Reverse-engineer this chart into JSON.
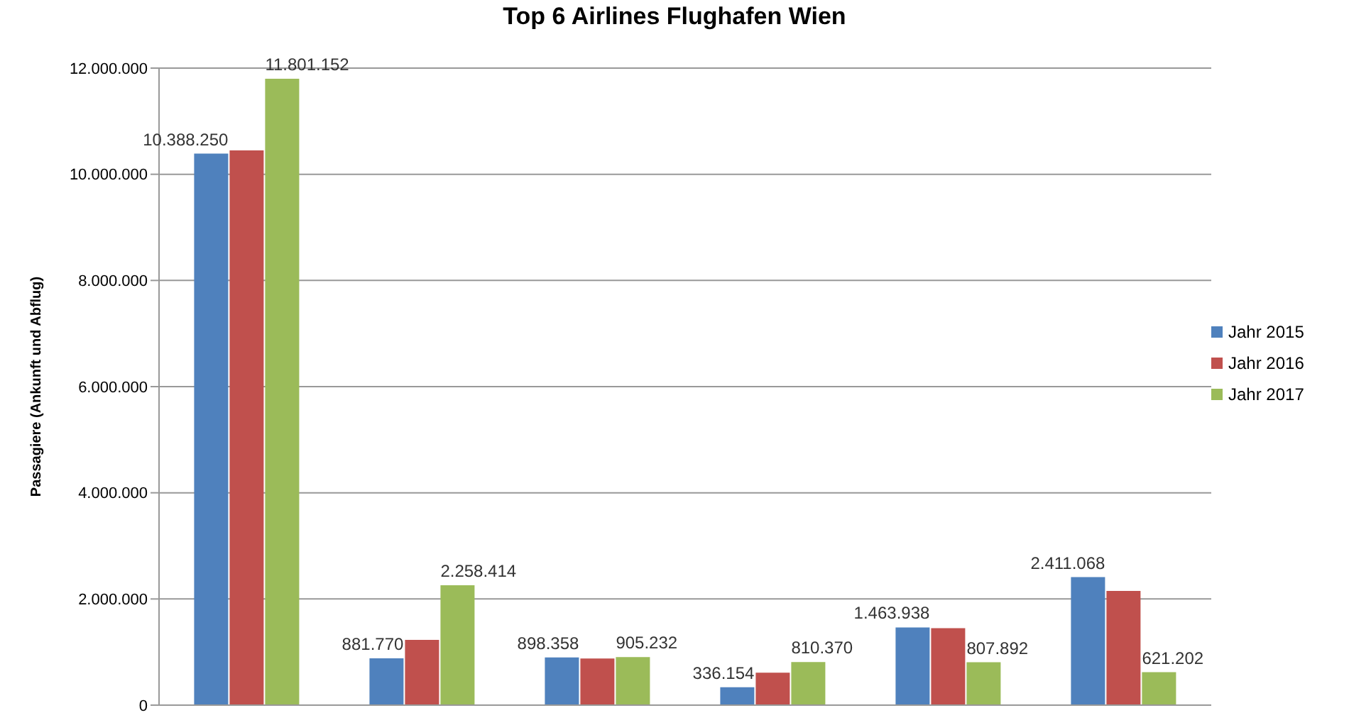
{
  "chart_data": {
    "type": "bar",
    "title": "Top 6 Airlines Flughafen Wien",
    "ylabel": "Passagiere (Ankunft und Abflug)",
    "categories": [
      null,
      null,
      null,
      null,
      null,
      null
    ],
    "series": [
      {
        "name": "Jahr 2015",
        "color": "#4f81bd",
        "values": [
          10388250,
          881770,
          898358,
          336154,
          1463938,
          2411068
        ],
        "value_labels": [
          "10.388.250",
          "881.770",
          "898.358",
          "336.154",
          "1.463.938",
          "2.411.068"
        ]
      },
      {
        "name": "Jahr 2016",
        "color": "#c0504d",
        "values": [
          10450000,
          1230000,
          880000,
          610000,
          1450000,
          2150000
        ]
      },
      {
        "name": "Jahr 2017",
        "color": "#9bbb59",
        "values": [
          11801152,
          2258414,
          905232,
          810370,
          807892,
          621202
        ],
        "value_labels": [
          "11.801.152",
          "2.258.414",
          "905.232",
          "810.370",
          "807.892",
          "621.202"
        ]
      }
    ],
    "ylim": [
      0,
      12000000
    ],
    "yticks": [
      0,
      {
        "value": 2000000,
        "label": "2.000.000"
      },
      {
        "value": 4000000,
        "label": "4.000.000"
      },
      {
        "value": 6000000,
        "label": "6.000.000"
      },
      {
        "value": 8000000,
        "label": "8.000.000"
      },
      {
        "value": 10000000,
        "label": "10.000.000"
      },
      {
        "value": 12000000,
        "label": "12.000.000"
      }
    ],
    "grid": "y",
    "legend": "right"
  }
}
